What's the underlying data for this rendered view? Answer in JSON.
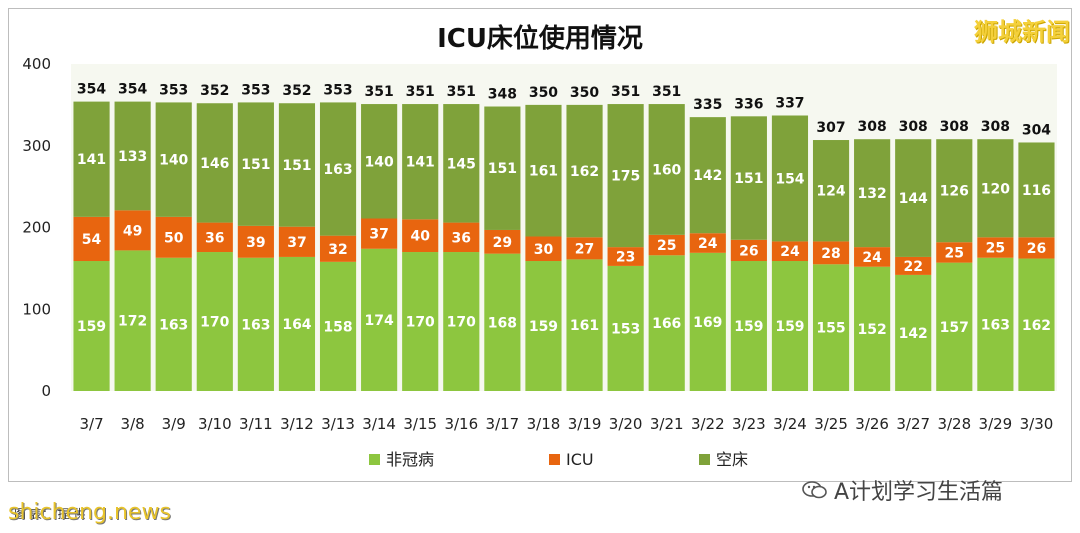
{
  "chart_data": {
    "type": "bar",
    "stacked": true,
    "title": "ICU床位使用情况",
    "categories": [
      "3/7",
      "3/8",
      "3/9",
      "3/10",
      "3/11",
      "3/12",
      "3/13",
      "3/14",
      "3/15",
      "3/16",
      "3/17",
      "3/18",
      "3/19",
      "3/20",
      "3/21",
      "3/22",
      "3/23",
      "3/24",
      "3/25",
      "3/26",
      "3/27",
      "3/28",
      "3/29",
      "3/30"
    ],
    "series": [
      {
        "name": "非冠病",
        "color": "#8dc63f",
        "values": [
          159,
          172,
          163,
          170,
          163,
          164,
          158,
          174,
          170,
          170,
          168,
          159,
          161,
          153,
          166,
          169,
          159,
          159,
          155,
          152,
          142,
          157,
          163,
          162
        ]
      },
      {
        "name": "ICU",
        "color": "#e8650f",
        "values": [
          54,
          49,
          50,
          36,
          39,
          37,
          32,
          37,
          40,
          36,
          29,
          30,
          27,
          23,
          25,
          24,
          26,
          24,
          28,
          24,
          22,
          25,
          25,
          26
        ]
      },
      {
        "name": "空床",
        "color": "#7fa23a",
        "values": [
          141,
          133,
          140,
          146,
          151,
          151,
          163,
          140,
          141,
          145,
          151,
          161,
          162,
          175,
          160,
          142,
          151,
          154,
          124,
          132,
          144,
          126,
          120,
          116
        ]
      }
    ],
    "totals": [
      354,
      354,
      353,
      352,
      353,
      352,
      353,
      351,
      351,
      351,
      348,
      350,
      350,
      351,
      351,
      335,
      336,
      337,
      307,
      308,
      308,
      308,
      308,
      304
    ],
    "ylim": [
      0,
      400
    ],
    "yticks": [
      "0",
      "100",
      "200",
      "300",
      "400"
    ],
    "legend_position": "bottom",
    "grid": false
  },
  "watermarks": {
    "top_right": "狮城新闻",
    "bottom_left": "shicheng.news",
    "bottom_right": "A计划学习生活篇",
    "footnote": "图 表：    提 供"
  }
}
